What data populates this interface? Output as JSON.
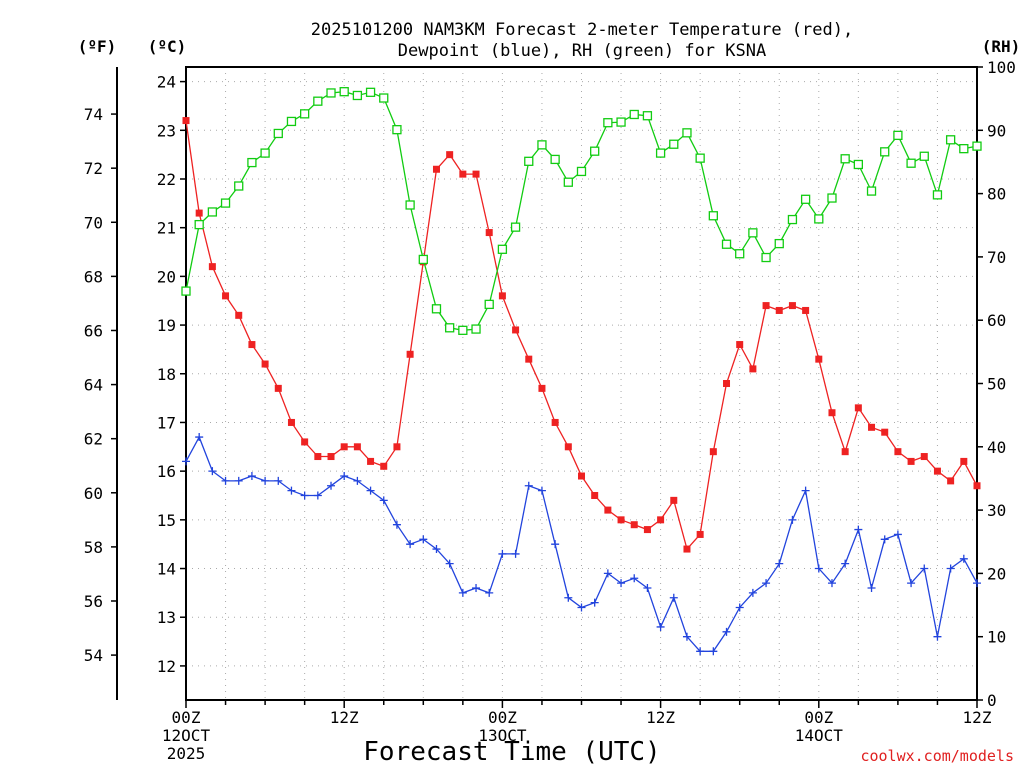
{
  "chart_data": {
    "type": "line",
    "title_line1": "2025101200 NAM3KM Forecast 2-meter Temperature (red),",
    "title_line2": "Dewpoint (blue), RH (green) for KSNA",
    "xlabel": "Forecast Time (UTC)",
    "credit": "coolwx.com/models",
    "units": {
      "fahrenheit": "(ºF)",
      "celsius": "(ºC)",
      "rh": "(RH)"
    },
    "x_range_hours": [
      0,
      60
    ],
    "celsius_ylim": [
      11.3,
      24.3
    ],
    "rh_ylim": [
      0,
      100
    ],
    "fahrenheit_ticks": [
      54,
      56,
      58,
      60,
      62,
      64,
      66,
      68,
      70,
      72,
      74
    ],
    "celsius_ticks": [
      12,
      13,
      14,
      15,
      16,
      17,
      18,
      19,
      20,
      21,
      22,
      23,
      24
    ],
    "rh_ticks": [
      0,
      10,
      20,
      30,
      40,
      50,
      60,
      70,
      80,
      90,
      100
    ],
    "x_ticks": [
      {
        "hour": 0,
        "lines": [
          "00Z",
          "12OCT",
          "2025"
        ]
      },
      {
        "hour": 12,
        "lines": [
          "12Z"
        ]
      },
      {
        "hour": 24,
        "lines": [
          "00Z",
          "13OCT"
        ]
      },
      {
        "hour": 36,
        "lines": [
          "12Z"
        ]
      },
      {
        "hour": 48,
        "lines": [
          "00Z",
          "14OCT"
        ]
      },
      {
        "hour": 60,
        "lines": [
          "12Z"
        ]
      }
    ],
    "hours": [
      0,
      1,
      2,
      3,
      4,
      5,
      6,
      7,
      8,
      9,
      10,
      11,
      12,
      13,
      14,
      15,
      16,
      17,
      18,
      19,
      20,
      21,
      22,
      23,
      24,
      25,
      26,
      27,
      28,
      29,
      30,
      31,
      32,
      33,
      34,
      35,
      36,
      37,
      38,
      39,
      40,
      41,
      42,
      43,
      44,
      45,
      46,
      47,
      48,
      49,
      50,
      51,
      52,
      53,
      54,
      55,
      56,
      57,
      58,
      59,
      60
    ],
    "series": [
      {
        "name": "2-meter Temperature",
        "color": "#ee2222",
        "marker": "filled-square",
        "units": "degC",
        "values": [
          23.2,
          21.3,
          20.2,
          19.6,
          19.2,
          18.6,
          18.2,
          17.7,
          17.0,
          16.6,
          16.3,
          16.3,
          16.5,
          16.5,
          16.2,
          16.1,
          16.5,
          18.4,
          20.3,
          22.2,
          22.5,
          22.1,
          22.1,
          20.9,
          19.6,
          18.9,
          18.3,
          17.7,
          17.0,
          16.5,
          15.9,
          15.5,
          15.2,
          15.0,
          14.9,
          14.8,
          15.0,
          15.4,
          14.4,
          14.7,
          16.4,
          17.8,
          18.6,
          18.1,
          19.4,
          19.3,
          19.4,
          19.3,
          18.3,
          17.2,
          16.4,
          17.3,
          16.9,
          16.8,
          16.4,
          16.2,
          16.3,
          16.0,
          15.8,
          16.2,
          15.7
        ]
      },
      {
        "name": "Dewpoint",
        "color": "#2244dd",
        "marker": "plus",
        "units": "degC",
        "values": [
          16.2,
          16.7,
          16.0,
          15.8,
          15.8,
          15.9,
          15.8,
          15.8,
          15.6,
          15.5,
          15.5,
          15.7,
          15.9,
          15.8,
          15.6,
          15.4,
          14.9,
          14.5,
          14.6,
          14.4,
          14.1,
          13.5,
          13.6,
          13.5,
          14.3,
          14.3,
          15.7,
          15.6,
          14.5,
          13.4,
          13.2,
          13.3,
          13.9,
          13.7,
          13.8,
          13.6,
          12.8,
          13.4,
          12.6,
          12.3,
          12.3,
          12.7,
          13.2,
          13.5,
          13.7,
          14.1,
          15.0,
          15.6,
          14.0,
          13.7,
          14.1,
          14.8,
          13.6,
          14.6,
          14.7,
          13.7,
          14.0,
          12.6,
          14.0,
          14.2,
          13.7
        ]
      },
      {
        "name": "RH",
        "color": "#11cc11",
        "marker": "open-square",
        "units": "percent",
        "values": [
          64.6,
          75.1,
          77.1,
          78.5,
          81.2,
          84.9,
          86.4,
          89.5,
          91.4,
          92.6,
          94.6,
          95.9,
          96.1,
          95.5,
          96.0,
          95.1,
          90.1,
          78.2,
          69.6,
          61.8,
          58.8,
          58.4,
          58.6,
          62.5,
          71.2,
          74.7,
          85.1,
          87.7,
          85.4,
          81.8,
          83.5,
          86.7,
          91.2,
          91.3,
          92.5,
          92.3,
          86.4,
          87.8,
          89.6,
          85.6,
          76.5,
          72.0,
          70.5,
          73.8,
          69.9,
          72.1,
          75.9,
          79.1,
          76.0,
          79.3,
          85.5,
          84.6,
          80.4,
          86.6,
          89.2,
          84.8,
          85.9,
          79.8,
          88.5,
          87.1,
          87.5
        ]
      }
    ]
  }
}
